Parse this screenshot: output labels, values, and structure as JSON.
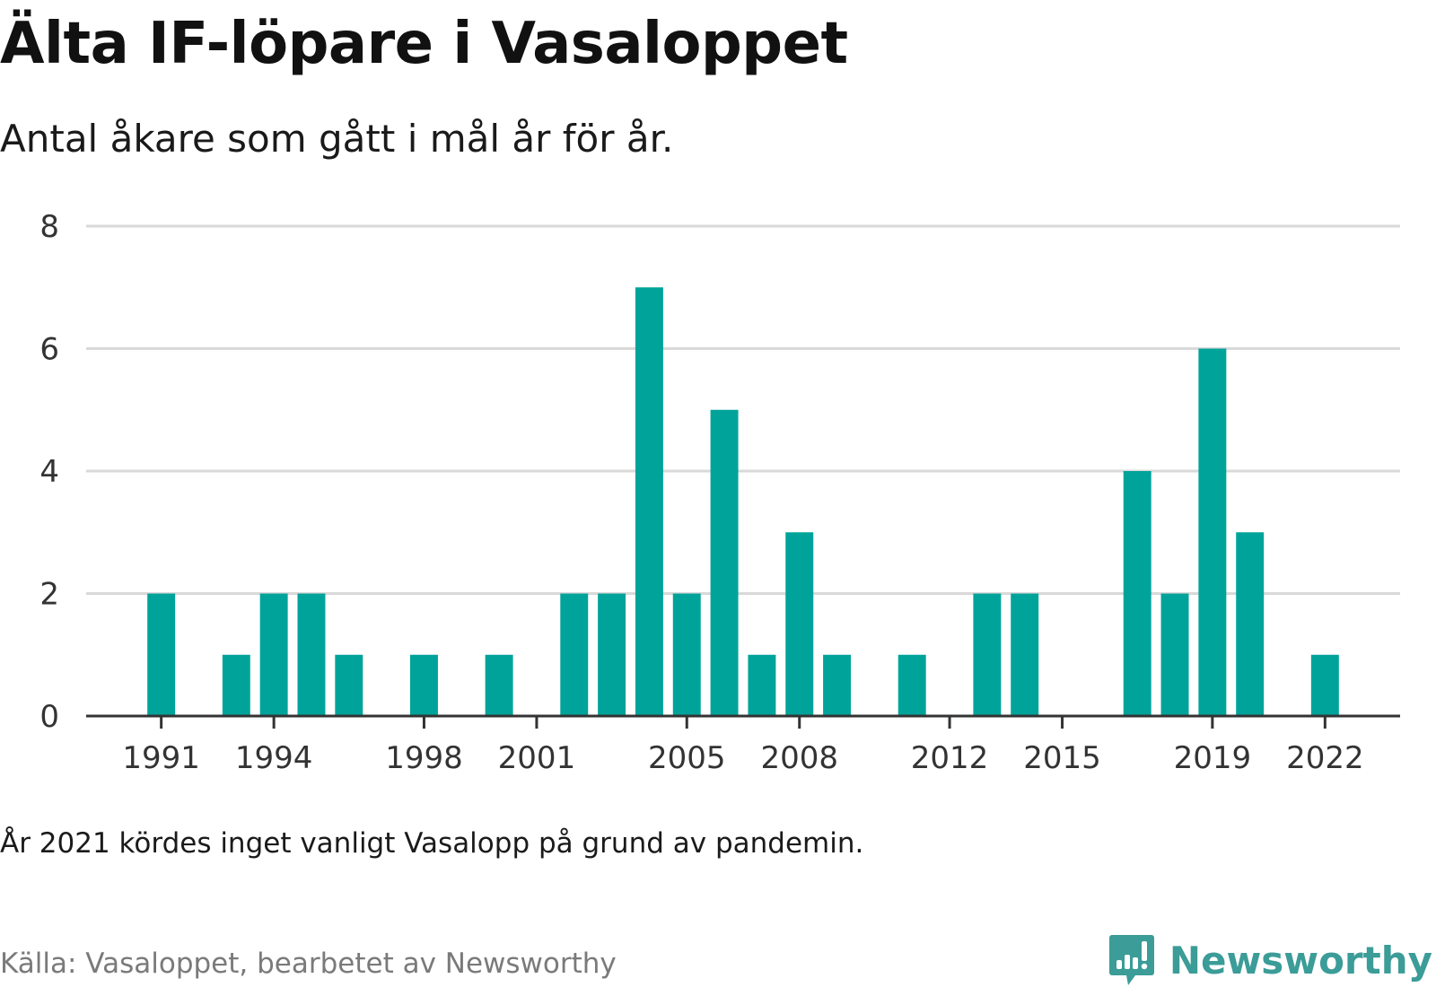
{
  "header": {
    "title": "Älta IF-löpare i Vasaloppet",
    "subtitle": "Antal åkare som gått i mål år för år."
  },
  "footer": {
    "note": "År 2021 kördes inget vanligt Vasalopp på grund av pandemin.",
    "source": "Källa: Vasaloppet, bearbetet av Newsworthy",
    "brand_name": "Newsworthy",
    "brand_color": "#3b9c98"
  },
  "chart_data": {
    "type": "bar",
    "x": [
      1991,
      1992,
      1993,
      1994,
      1995,
      1996,
      1997,
      1998,
      1999,
      2000,
      2001,
      2002,
      2003,
      2004,
      2005,
      2006,
      2007,
      2008,
      2009,
      2010,
      2011,
      2012,
      2013,
      2014,
      2015,
      2016,
      2017,
      2018,
      2019,
      2020,
      2021,
      2022
    ],
    "values": [
      2,
      0,
      1,
      2,
      2,
      1,
      0,
      1,
      0,
      1,
      0,
      2,
      2,
      7,
      2,
      5,
      1,
      3,
      1,
      0,
      1,
      0,
      2,
      2,
      0,
      0,
      4,
      2,
      6,
      3,
      0,
      1
    ],
    "xticks": [
      "1991",
      "1994",
      "1998",
      "2001",
      "2005",
      "2008",
      "2012",
      "2015",
      "2019",
      "2022"
    ],
    "yticks": [
      "0",
      "2",
      "4",
      "6",
      "8"
    ],
    "ylim": [
      0,
      8
    ],
    "grid": true,
    "bar_color": "#00a39a",
    "title": "Älta IF-löpare i Vasaloppet",
    "subtitle": "Antal åkare som gått i mål år för år.",
    "xlabel": "",
    "ylabel": ""
  }
}
